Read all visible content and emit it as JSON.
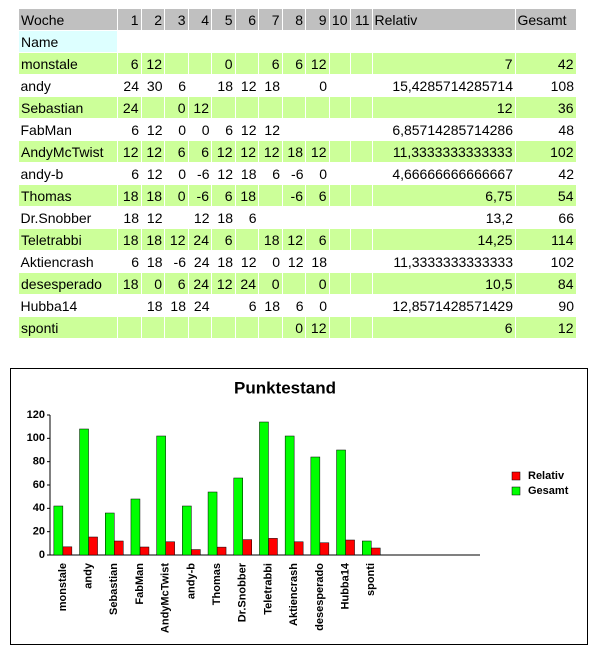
{
  "table": {
    "header": [
      "Woche",
      "1",
      "2",
      "3",
      "4",
      "5",
      "6",
      "7",
      "8",
      "9",
      "10",
      "11",
      "Relativ",
      "Gesamt"
    ],
    "name_label": "Name",
    "rows": [
      [
        "monstale",
        "6",
        "12",
        null,
        null,
        "0",
        null,
        "6",
        "6",
        "12",
        null,
        null,
        "7",
        "42"
      ],
      [
        "andy",
        "24",
        "30",
        "6",
        null,
        "18",
        "12",
        "18",
        null,
        "0",
        null,
        null,
        "15,4285714285714",
        "108"
      ],
      [
        "Sebastian",
        "24",
        null,
        "0",
        "12",
        null,
        null,
        null,
        null,
        null,
        null,
        null,
        "12",
        "36"
      ],
      [
        "FabMan",
        "6",
        "12",
        "0",
        "0",
        "6",
        "12",
        "12",
        null,
        null,
        null,
        null,
        "6,85714285714286",
        "48"
      ],
      [
        "AndyMcTwist",
        "12",
        "12",
        "6",
        "6",
        "12",
        "12",
        "12",
        "18",
        "12",
        null,
        null,
        "11,3333333333333",
        "102"
      ],
      [
        "andy-b",
        "6",
        "12",
        "0",
        "-6",
        "12",
        "18",
        "6",
        "-6",
        "0",
        null,
        null,
        "4,66666666666667",
        "42"
      ],
      [
        "Thomas",
        "18",
        "18",
        "0",
        "-6",
        "6",
        "18",
        null,
        "-6",
        "6",
        null,
        null,
        "6,75",
        "54"
      ],
      [
        "Dr.Snobber",
        "18",
        "12",
        null,
        "12",
        "18",
        "6",
        null,
        null,
        null,
        null,
        null,
        "13,2",
        "66"
      ],
      [
        "Teletrabbi",
        "18",
        "18",
        "12",
        "24",
        "6",
        null,
        "18",
        "12",
        "6",
        null,
        null,
        "14,25",
        "114"
      ],
      [
        "Aktiencrash",
        "6",
        "18",
        "-6",
        "24",
        "18",
        "12",
        "0",
        "12",
        "18",
        null,
        null,
        "11,3333333333333",
        "102"
      ],
      [
        "desesperado",
        "18",
        "0",
        "6",
        "24",
        "12",
        "24",
        "0",
        null,
        "0",
        null,
        null,
        "10,5",
        "84"
      ],
      [
        "Hubba14",
        null,
        "18",
        "18",
        "24",
        null,
        "6",
        "18",
        "6",
        "0",
        null,
        null,
        "12,8571428571429",
        "90"
      ],
      [
        "sponti",
        null,
        null,
        null,
        null,
        null,
        null,
        null,
        "0",
        "12",
        null,
        null,
        "6",
        "12"
      ]
    ]
  },
  "chart_data": {
    "type": "bar",
    "title": "Punktestand",
    "categories": [
      "monstale",
      "andy",
      "Sebastian",
      "FabMan",
      "AndyMcTwist",
      "andy-b",
      "Thomas",
      "Dr.Snobber",
      "Teletrabbi",
      "Aktiencrash",
      "desesperado",
      "Hubba14",
      "sponti"
    ],
    "series": [
      {
        "name": "Relativ",
        "color": "#ff0000",
        "values": [
          7,
          15.43,
          12,
          6.86,
          11.33,
          4.67,
          6.75,
          13.2,
          14.25,
          11.33,
          10.5,
          12.86,
          6
        ]
      },
      {
        "name": "Gesamt",
        "color": "#00ff00",
        "values": [
          42,
          108,
          36,
          48,
          102,
          42,
          54,
          66,
          114,
          102,
          84,
          90,
          12
        ]
      }
    ],
    "ylim": [
      0,
      120
    ],
    "yticks": [
      0,
      20,
      40,
      60,
      80,
      100,
      120
    ],
    "grid": false,
    "legend": "right"
  }
}
